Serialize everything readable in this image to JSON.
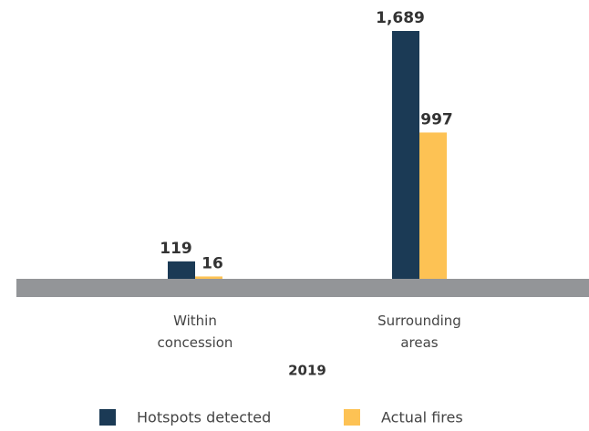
{
  "chart_data": {
    "type": "bar",
    "categories": [
      "Within concession",
      "Surrounding areas"
    ],
    "xlabel": "2019",
    "series": [
      {
        "name": "Hotspots detected",
        "color": "#1b3a55",
        "values": [
          119,
          1689
        ],
        "value_labels": [
          "119",
          "1,689"
        ]
      },
      {
        "name": "Actual fires",
        "color": "#fdc254",
        "values": [
          16,
          997
        ],
        "value_labels": [
          "16",
          "997"
        ]
      }
    ],
    "ylim": [
      0,
      1900
    ]
  }
}
